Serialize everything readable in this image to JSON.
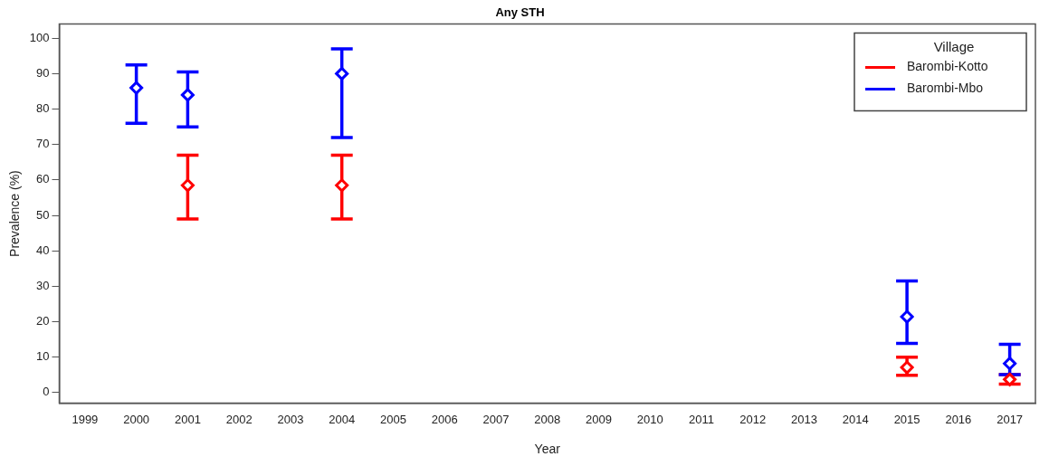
{
  "chart_data": {
    "type": "scatter",
    "title": "Any STH",
    "xlabel": "Year",
    "ylabel": "Prevalence (%)",
    "legend_title": "Village",
    "categories": [
      "1999",
      "2000",
      "2001",
      "2002",
      "2003",
      "2004",
      "2005",
      "2006",
      "2007",
      "2008",
      "2009",
      "2010",
      "2011",
      "2012",
      "2013",
      "2014",
      "2015",
      "2016",
      "2017"
    ],
    "series": [
      {
        "name": "Barombi-Kotto",
        "color": "#ff0000",
        "values": [
          null,
          null,
          58.5,
          null,
          null,
          58.5,
          null,
          null,
          null,
          null,
          null,
          null,
          null,
          null,
          null,
          null,
          7.1,
          null,
          3.7
        ],
        "errors": [
          null,
          null,
          [
            49,
            67
          ],
          null,
          null,
          [
            49,
            67
          ],
          null,
          null,
          null,
          null,
          null,
          null,
          null,
          null,
          null,
          null,
          [
            4.9,
            10
          ],
          null,
          [
            2.4,
            5.1
          ]
        ]
      },
      {
        "name": "Barombi-Mbo",
        "color": "#0000ff",
        "values": [
          null,
          86,
          84,
          null,
          null,
          90,
          null,
          null,
          null,
          null,
          null,
          null,
          null,
          null,
          null,
          null,
          21.4,
          null,
          8.2
        ],
        "errors": [
          null,
          [
            76,
            92.5
          ],
          [
            75,
            90.5
          ],
          null,
          null,
          [
            72,
            97
          ],
          null,
          null,
          null,
          null,
          null,
          null,
          null,
          null,
          null,
          null,
          [
            13.9,
            31.5
          ],
          null,
          [
            5.1,
            13.6
          ]
        ]
      }
    ],
    "ylim": [
      -3,
      104
    ],
    "yticks": [
      0,
      10,
      20,
      30,
      40,
      50,
      60,
      70,
      80,
      90,
      100
    ],
    "marker": "diamond",
    "legend": "top right",
    "grid": false
  }
}
